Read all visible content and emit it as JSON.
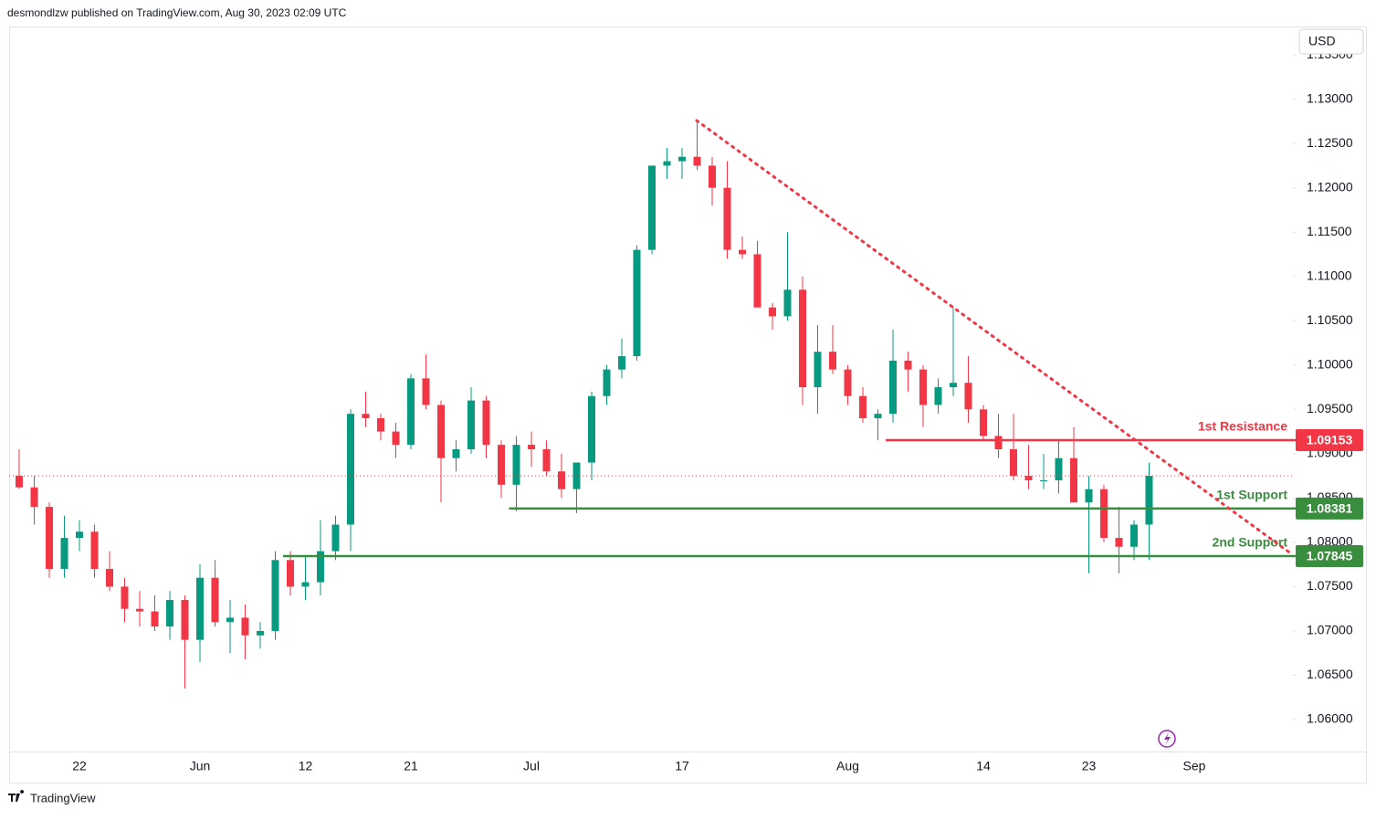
{
  "header": {
    "publisher": "desmondlzw published on TradingView.com, Aug 30, 2023 02:09 UTC",
    "currency": "USD"
  },
  "footer": {
    "brand": "TradingView"
  },
  "chart_data": {
    "type": "candlestick",
    "categories": [
      null,
      null,
      null,
      null,
      "22",
      null,
      null,
      null,
      null,
      null,
      null,
      null,
      "Jun",
      null,
      null,
      null,
      null,
      null,
      null,
      "12",
      null,
      null,
      null,
      null,
      null,
      null,
      "21",
      null,
      null,
      null,
      null,
      null,
      null,
      null,
      "Jul",
      null,
      null,
      null,
      null,
      null,
      null,
      null,
      null,
      null,
      "17",
      null,
      null,
      null,
      null,
      null,
      null,
      null,
      null,
      null,
      null,
      "Aug",
      null,
      null,
      null,
      null,
      null,
      null,
      null,
      null,
      "14",
      null,
      null,
      null,
      null,
      null,
      null,
      "23",
      null,
      null,
      null,
      null,
      null,
      null,
      "Sep"
    ],
    "open": [
      1.0875,
      1.0862,
      1.084,
      1.077,
      1.0805,
      1.0812,
      1.077,
      1.075,
      1.0725,
      1.0722,
      1.0705,
      1.0735,
      1.069,
      1.076,
      1.071,
      1.0715,
      1.0695,
      1.07,
      1.078,
      1.075,
      1.0755,
      1.079,
      1.082,
      1.0945,
      1.094,
      1.0925,
      1.091,
      1.0985,
      1.0955,
      1.0895,
      1.0905,
      1.096,
      1.091,
      1.0865,
      1.091,
      1.0905,
      1.088,
      1.086,
      1.089,
      1.0965,
      1.0995,
      1.101,
      1.113,
      1.1225,
      1.123,
      1.1235,
      1.1225,
      1.12,
      1.113,
      1.1125,
      1.1065,
      1.1055,
      1.1085,
      1.0975,
      1.1015,
      1.0995,
      1.0965,
      1.094,
      1.0945,
      1.1005,
      1.0995,
      1.0955,
      1.0975,
      1.098,
      1.095,
      1.092,
      1.0905,
      1.0875,
      1.087,
      1.087,
      1.0895,
      1.0845,
      1.086,
      1.0805,
      1.0795,
      1.082,
      null,
      null,
      null
    ],
    "high": [
      1.0905,
      1.0875,
      1.0845,
      1.083,
      1.0825,
      1.082,
      1.079,
      1.076,
      1.0745,
      1.074,
      1.0745,
      1.074,
      1.0775,
      1.078,
      1.0735,
      1.073,
      1.071,
      1.079,
      1.079,
      1.0785,
      1.0825,
      1.083,
      1.095,
      1.097,
      1.0945,
      1.0935,
      1.099,
      1.1012,
      1.096,
      1.0915,
      1.0975,
      1.0965,
      1.0915,
      1.092,
      1.0925,
      1.0915,
      1.09,
      1.089,
      1.097,
      1.1,
      1.103,
      1.1135,
      1.1225,
      1.1245,
      1.1245,
      1.1276,
      1.1235,
      1.123,
      1.1145,
      1.114,
      1.107,
      1.115,
      1.11,
      1.1045,
      1.1045,
      1.1,
      1.0975,
      1.095,
      1.104,
      1.1015,
      1.1,
      1.0985,
      1.1065,
      1.101,
      1.0955,
      1.0945,
      1.0945,
      1.091,
      1.09,
      1.0915,
      1.093,
      1.0875,
      1.0865,
      1.084,
      1.0825,
      1.089,
      null,
      null,
      null
    ],
    "low": [
      1.086,
      1.082,
      1.076,
      1.076,
      1.079,
      1.076,
      1.0745,
      1.071,
      1.0705,
      1.07,
      1.069,
      1.0635,
      1.0665,
      1.0705,
      1.0675,
      1.0668,
      1.068,
      1.069,
      1.074,
      1.0735,
      1.074,
      1.078,
      1.079,
      1.093,
      1.0915,
      1.0895,
      1.0905,
      1.095,
      1.0845,
      1.088,
      1.09,
      1.0895,
      1.085,
      1.0835,
      1.0885,
      1.0875,
      1.085,
      1.0833,
      1.087,
      1.0955,
      1.0985,
      1.1005,
      1.1125,
      1.121,
      1.121,
      1.122,
      1.118,
      1.112,
      1.112,
      1.1065,
      1.104,
      1.105,
      1.0955,
      1.0945,
      1.099,
      1.0955,
      1.0935,
      1.0915,
      1.0935,
      1.097,
      1.093,
      1.0945,
      1.0965,
      1.0935,
      1.0915,
      1.0895,
      1.087,
      1.086,
      1.086,
      1.0855,
      1.0845,
      1.0765,
      1.08,
      1.0765,
      1.078,
      1.078,
      null,
      null,
      null
    ],
    "close": [
      1.0862,
      1.084,
      1.077,
      1.0805,
      1.0812,
      1.077,
      1.075,
      1.0725,
      1.0722,
      1.0705,
      1.0735,
      1.069,
      1.076,
      1.071,
      1.0715,
      1.0695,
      1.07,
      1.078,
      1.075,
      1.0755,
      1.079,
      1.082,
      1.0945,
      1.094,
      1.0925,
      1.091,
      1.0985,
      1.0955,
      1.0895,
      1.0905,
      1.096,
      1.091,
      1.0865,
      1.091,
      1.0905,
      1.088,
      1.086,
      1.089,
      1.0965,
      1.0995,
      1.101,
      1.113,
      1.1225,
      1.123,
      1.1235,
      1.1225,
      1.12,
      1.113,
      1.1125,
      1.1065,
      1.1055,
      1.1085,
      1.0975,
      1.1015,
      1.0995,
      1.0965,
      1.094,
      1.0945,
      1.1005,
      1.0995,
      1.0955,
      1.0975,
      1.098,
      1.095,
      1.092,
      1.0905,
      1.0875,
      1.087,
      1.087,
      1.0895,
      1.0845,
      1.086,
      1.0805,
      1.0795,
      1.082,
      1.0875,
      null,
      null,
      null
    ],
    "up_color": "#089981",
    "down_color": "#f23645",
    "ylim": [
      1.0531,
      1.1381
    ],
    "yticks": [
      {
        "value": 1.06,
        "label": "1.06000"
      },
      {
        "value": 1.065,
        "label": "1.06500"
      },
      {
        "value": 1.07,
        "label": "1.07000"
      },
      {
        "value": 1.075,
        "label": "1.07500"
      },
      {
        "value": 1.08,
        "label": "1.08000"
      },
      {
        "value": 1.085,
        "label": "1.08500"
      },
      {
        "value": 1.09,
        "label": "1.09000"
      },
      {
        "value": 1.095,
        "label": "1.09500"
      },
      {
        "value": 1.1,
        "label": "1.10000"
      },
      {
        "value": 1.105,
        "label": "1.10500"
      },
      {
        "value": 1.11,
        "label": "1.11000"
      },
      {
        "value": 1.115,
        "label": "1.11500"
      },
      {
        "value": 1.12,
        "label": "1.12000"
      },
      {
        "value": 1.125,
        "label": "1.12500"
      },
      {
        "value": 1.13,
        "label": "1.13000"
      },
      {
        "value": 1.135,
        "label": "1.13500"
      }
    ],
    "levels": [
      {
        "name": "1st Resistance",
        "value": 1.09153,
        "color": "#f23645"
      },
      {
        "name": "1st Support",
        "value": 1.08381,
        "color": "#388e3c"
      },
      {
        "name": "2nd Support",
        "value": 1.07845,
        "color": "#388e3c"
      }
    ]
  }
}
